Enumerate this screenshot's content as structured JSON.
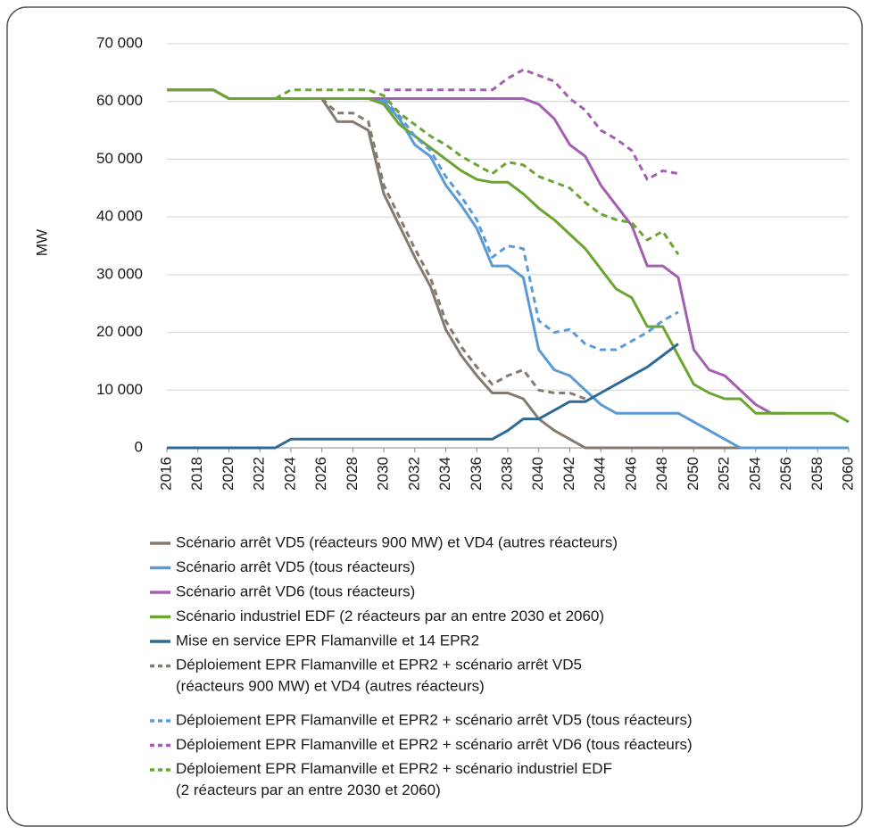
{
  "chart_data": {
    "type": "line",
    "y_label": "MW",
    "x": [
      2016,
      2017,
      2018,
      2019,
      2020,
      2021,
      2022,
      2023,
      2024,
      2025,
      2026,
      2027,
      2028,
      2029,
      2030,
      2031,
      2032,
      2033,
      2034,
      2035,
      2036,
      2037,
      2038,
      2039,
      2040,
      2041,
      2042,
      2043,
      2044,
      2045,
      2046,
      2047,
      2048,
      2049,
      2050,
      2051,
      2052,
      2053,
      2054,
      2055,
      2056,
      2057,
      2058,
      2059,
      2060
    ],
    "xlim": [
      2016,
      2060
    ],
    "xticks": [
      2016,
      2018,
      2020,
      2022,
      2024,
      2026,
      2028,
      2030,
      2032,
      2034,
      2036,
      2038,
      2040,
      2042,
      2044,
      2046,
      2048,
      2050,
      2052,
      2054,
      2056,
      2058,
      2060
    ],
    "ylim": [
      0,
      70000
    ],
    "yticks": [
      0,
      {
        "value": 10000,
        "label": "10 000"
      },
      {
        "value": 20000,
        "label": "20 000"
      },
      {
        "value": 30000,
        "label": "30 000"
      },
      {
        "value": 40000,
        "label": "40 000"
      },
      {
        "value": 50000,
        "label": "50 000"
      },
      {
        "value": 60000,
        "label": "60 000"
      },
      {
        "value": 70000,
        "label": "70 000"
      }
    ],
    "grid": true,
    "series": [
      {
        "name": "Scénario arrêt VD5 (réacteurs 900 MW) et VD4 (autres réacteurs)",
        "color": "#857a70",
        "style": "solid",
        "values": [
          62000,
          62000,
          62000,
          62000,
          60500,
          60500,
          60500,
          60500,
          60500,
          60500,
          60500,
          56500,
          56500,
          55000,
          44000,
          38500,
          33000,
          28000,
          20500,
          16000,
          12500,
          9500,
          9500,
          8500,
          5000,
          3000,
          1500,
          0,
          0,
          0,
          0,
          0,
          0,
          0,
          0,
          0,
          0,
          0,
          0,
          0,
          0,
          0,
          0,
          0,
          0
        ]
      },
      {
        "name": "Scénario arrêt VD5 (tous réacteurs)",
        "color": "#5b9bd5",
        "style": "solid",
        "values": [
          62000,
          62000,
          62000,
          62000,
          60500,
          60500,
          60500,
          60500,
          60500,
          60500,
          60500,
          60500,
          60500,
          60500,
          60000,
          57000,
          52500,
          50500,
          45500,
          42000,
          38000,
          31500,
          31500,
          29500,
          17000,
          13500,
          12500,
          10000,
          7500,
          6000,
          6000,
          6000,
          6000,
          6000,
          4500,
          3000,
          1500,
          0,
          0,
          0,
          0,
          0,
          0,
          0,
          0
        ]
      },
      {
        "name": "Scénario arrêt VD6 (tous réacteurs)",
        "color": "#a35fb0",
        "style": "solid",
        "values": [
          62000,
          62000,
          62000,
          62000,
          60500,
          60500,
          60500,
          60500,
          60500,
          60500,
          60500,
          60500,
          60500,
          60500,
          60500,
          60500,
          60500,
          60500,
          60500,
          60500,
          60500,
          60500,
          60500,
          60500,
          59500,
          57000,
          52500,
          50500,
          45500,
          42000,
          38500,
          31500,
          31500,
          29500,
          17000,
          13500,
          12500,
          10000,
          7500,
          6000,
          6000,
          null,
          null,
          null,
          null
        ]
      },
      {
        "name": "Scénario industriel EDF (2 réacteurs par an entre 2030 et 2060)",
        "color": "#6aa532",
        "style": "solid",
        "values": [
          62000,
          62000,
          62000,
          62000,
          60500,
          60500,
          60500,
          60500,
          60500,
          60500,
          60500,
          60500,
          60500,
          60500,
          59500,
          56000,
          54000,
          52000,
          50000,
          48000,
          46500,
          46000,
          46000,
          44000,
          41500,
          39500,
          37000,
          34500,
          31000,
          27500,
          26000,
          21000,
          21000,
          16000,
          11000,
          9500,
          8500,
          8500,
          6000,
          6000,
          6000,
          6000,
          6000,
          6000,
          4500
        ]
      },
      {
        "name": "Mise en service EPR Flamanville et 14 EPR2",
        "color": "#2e6a94",
        "style": "solid",
        "values": [
          0,
          0,
          0,
          0,
          0,
          0,
          0,
          0,
          1500,
          1500,
          1500,
          1500,
          1500,
          1500,
          1500,
          1500,
          1500,
          1500,
          1500,
          1500,
          1500,
          1500,
          3000,
          5000,
          5000,
          6500,
          8000,
          8000,
          9500,
          11000,
          12500,
          14000,
          16000,
          18000,
          null,
          null,
          null,
          null,
          null,
          null,
          null,
          null,
          null,
          null,
          null
        ]
      },
      {
        "name": "Déploiement EPR Flamanville et EPR2 + scénario arrêt VD5 (réacteurs 900 MW) et VD4 (autres réacteurs)",
        "color": "#857a70",
        "style": "dashed",
        "values": [
          null,
          null,
          null,
          null,
          null,
          null,
          null,
          null,
          null,
          null,
          60500,
          58000,
          58000,
          56500,
          45500,
          40000,
          34500,
          29500,
          22000,
          17500,
          14000,
          11000,
          12500,
          13500,
          10000,
          9500,
          9500,
          8500,
          null,
          null,
          null,
          null,
          null,
          null,
          null,
          null,
          null,
          null,
          null,
          null,
          null,
          null,
          null,
          null,
          null
        ]
      },
      {
        "name": "Déploiement EPR Flamanville et EPR2 + scénario arrêt VD5 (tous réacteurs)",
        "color": "#5b9bd5",
        "style": "dashed",
        "values": [
          null,
          null,
          null,
          null,
          null,
          null,
          null,
          null,
          null,
          null,
          null,
          null,
          null,
          null,
          60500,
          57500,
          54000,
          51500,
          47000,
          43500,
          39500,
          33000,
          35000,
          34500,
          22000,
          20000,
          20500,
          18000,
          17000,
          17000,
          18500,
          20000,
          22000,
          23500,
          null,
          null,
          null,
          null,
          null,
          null,
          null,
          null,
          null,
          null,
          null
        ]
      },
      {
        "name": "Déploiement EPR Flamanville et EPR2 + scénario arrêt VD6 (tous réacteurs)",
        "color": "#a35fb0",
        "style": "dashed",
        "values": [
          null,
          null,
          null,
          null,
          null,
          null,
          null,
          null,
          null,
          null,
          null,
          null,
          null,
          null,
          62000,
          62000,
          62000,
          62000,
          62000,
          62000,
          62000,
          62000,
          64000,
          65500,
          64500,
          63500,
          60500,
          58500,
          55000,
          53500,
          51500,
          46500,
          48000,
          47500,
          null,
          null,
          null,
          null,
          null,
          null,
          null,
          null,
          null,
          null,
          null
        ]
      },
      {
        "name": "Déploiement EPR Flamanville et EPR2 + scénario industriel EDF (2 réacteurs par an entre 2030 et 2060)",
        "color": "#6aa532",
        "style": "dashed",
        "values": [
          null,
          null,
          null,
          null,
          null,
          null,
          null,
          60500,
          62000,
          62000,
          62000,
          62000,
          62000,
          62000,
          61000,
          58000,
          56000,
          54000,
          52500,
          50500,
          49000,
          47500,
          49500,
          49000,
          47000,
          46000,
          45000,
          42500,
          40500,
          39500,
          39000,
          36000,
          37500,
          33500,
          null,
          null,
          null,
          null,
          null,
          null,
          null,
          null,
          null,
          null,
          null
        ]
      }
    ]
  }
}
